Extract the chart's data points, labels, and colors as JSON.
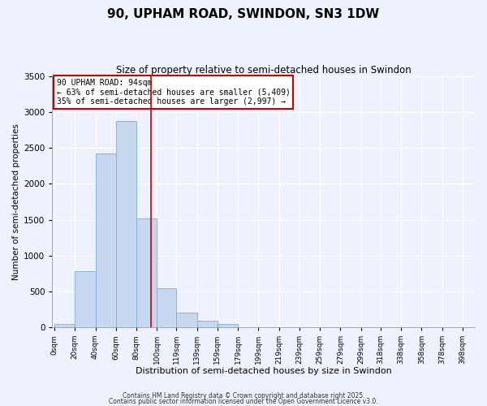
{
  "title": "90, UPHAM ROAD, SWINDON, SN3 1DW",
  "subtitle": "Size of property relative to semi-detached houses in Swindon",
  "xlabel": "Distribution of semi-detached houses by size in Swindon",
  "ylabel": "Number of semi-detached properties",
  "bar_left_edges": [
    0,
    20,
    40,
    60,
    80,
    100,
    119,
    139,
    159,
    179,
    199,
    219,
    239,
    259,
    279,
    299,
    318,
    338,
    358,
    378
  ],
  "bar_widths": [
    20,
    20,
    20,
    20,
    20,
    19,
    20,
    20,
    20,
    20,
    20,
    20,
    20,
    20,
    20,
    19,
    20,
    20,
    20,
    20
  ],
  "bar_heights": [
    50,
    780,
    2430,
    2880,
    1520,
    540,
    200,
    90,
    50,
    0,
    0,
    0,
    0,
    0,
    0,
    0,
    0,
    0,
    0,
    0
  ],
  "bar_color": "#c5d8f0",
  "bar_edge_color": "#7aaddb",
  "property_value": 94,
  "vline_color": "#cc0000",
  "annotation_line1": "90 UPHAM ROAD: 94sqm",
  "annotation_line2": "← 63% of semi-detached houses are smaller (5,409)",
  "annotation_line3": "35% of semi-detached houses are larger (2,997) →",
  "annotation_box_color": "#cc0000",
  "annotation_box_fill": "#ffffff",
  "tick_labels": [
    "0sqm",
    "20sqm",
    "40sqm",
    "60sqm",
    "80sqm",
    "100sqm",
    "119sqm",
    "139sqm",
    "159sqm",
    "179sqm",
    "199sqm",
    "219sqm",
    "239sqm",
    "259sqm",
    "279sqm",
    "299sqm",
    "318sqm",
    "338sqm",
    "358sqm",
    "378sqm",
    "398sqm"
  ],
  "tick_positions": [
    0,
    20,
    40,
    60,
    80,
    100,
    119,
    139,
    159,
    179,
    199,
    219,
    239,
    259,
    279,
    299,
    318,
    338,
    358,
    378,
    398
  ],
  "ylim": [
    0,
    3500
  ],
  "xlim": [
    -2,
    410
  ],
  "yticks": [
    0,
    500,
    1000,
    1500,
    2000,
    2500,
    3000,
    3500
  ],
  "bg_color": "#eef2ff",
  "grid_color": "#ffffff",
  "footer_line1": "Contains HM Land Registry data © Crown copyright and database right 2025.",
  "footer_line2": "Contains public sector information licensed under the Open Government Licence v3.0.",
  "figsize": [
    6.0,
    5.0
  ],
  "dpi": 100
}
